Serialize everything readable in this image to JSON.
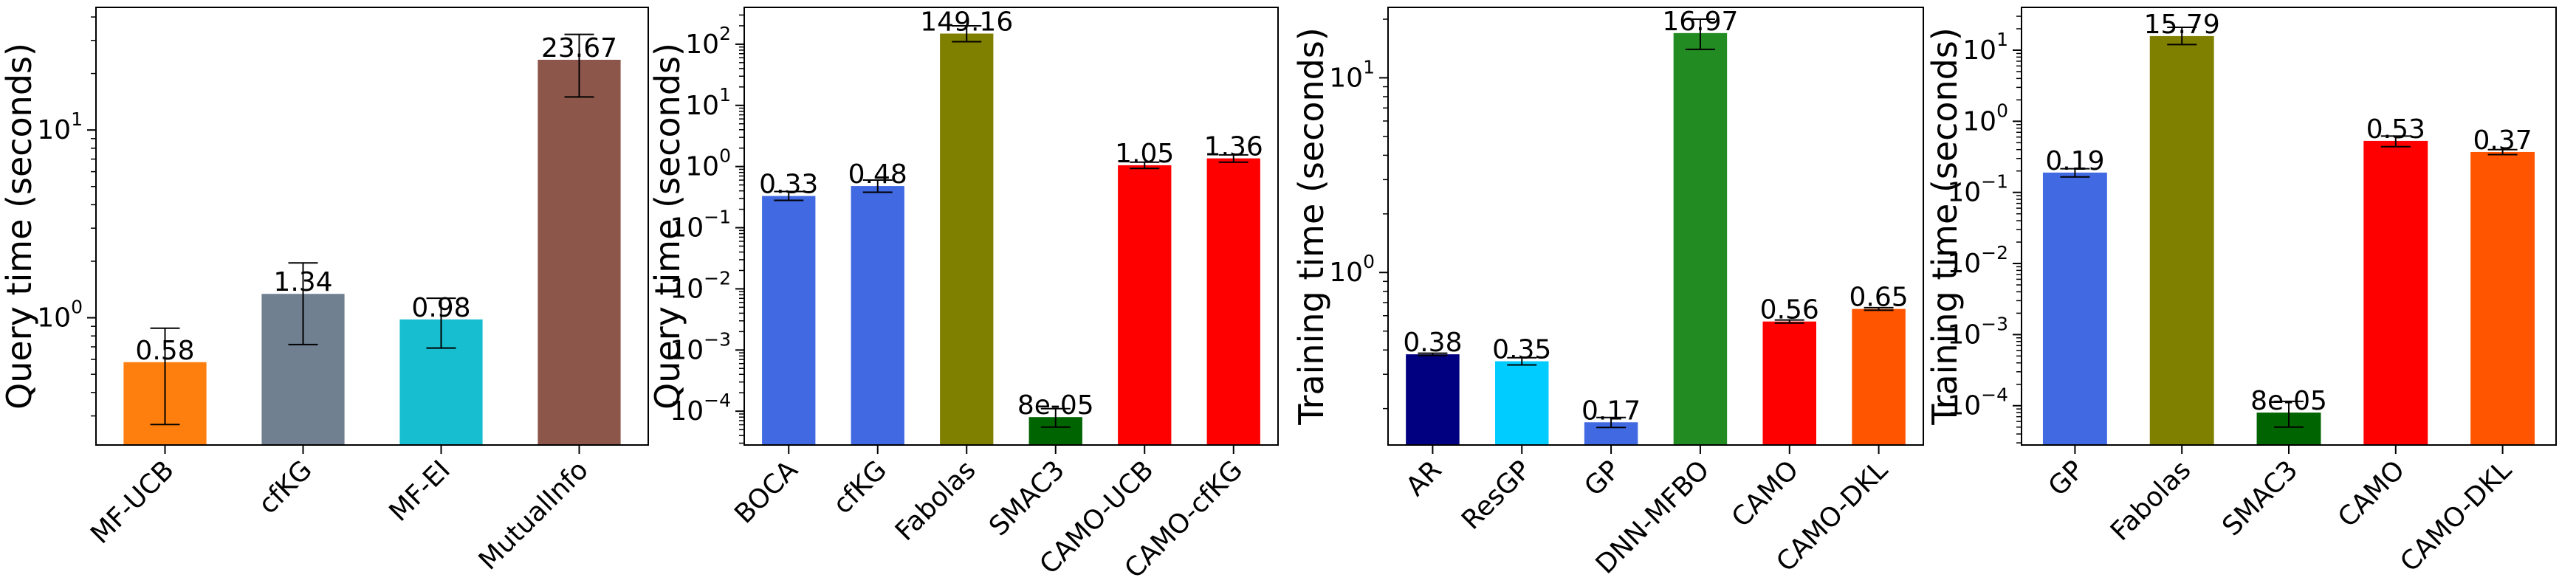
{
  "chart_data": [
    {
      "type": "bar",
      "ylabel": "Query time (seconds)",
      "yscale": "log",
      "ylim": [
        0.21,
        45
      ],
      "yticks": [
        {
          "value": 1,
          "mantissa": "10",
          "exp": "0"
        },
        {
          "value": 10,
          "mantissa": "10",
          "exp": "1"
        }
      ],
      "categories": [
        "MF-UCB",
        "cfKG",
        "MF-EI",
        "MutualInfo"
      ],
      "values": [
        0.58,
        1.34,
        0.98,
        23.67
      ],
      "value_labels": [
        "0.58",
        "1.34",
        "0.98",
        "23.67"
      ],
      "error_low": [
        0.27,
        0.72,
        0.69,
        15.0
      ],
      "error_high": [
        0.88,
        1.96,
        1.27,
        32.3
      ],
      "colors": [
        "#ff7f0e",
        "#708090",
        "#17becf",
        "#8c564b"
      ]
    },
    {
      "type": "bar",
      "ylabel": "Query time (seconds)",
      "yscale": "log",
      "ylim": [
        2.8e-05,
        400
      ],
      "yticks": [
        {
          "value": 0.0001,
          "mantissa": "10",
          "exp": "−4"
        },
        {
          "value": 0.001,
          "mantissa": "10",
          "exp": "−3"
        },
        {
          "value": 0.01,
          "mantissa": "10",
          "exp": "−2"
        },
        {
          "value": 0.1,
          "mantissa": "10",
          "exp": "−1"
        },
        {
          "value": 1,
          "mantissa": "10",
          "exp": "0"
        },
        {
          "value": 10,
          "mantissa": "10",
          "exp": "1"
        },
        {
          "value": 100,
          "mantissa": "10",
          "exp": "2"
        }
      ],
      "categories": [
        "BOCA",
        "cfKG",
        "Fabolas",
        "SMAC3",
        "CAMO-UCB",
        "CAMO-cfKG"
      ],
      "values": [
        0.33,
        0.48,
        149.16,
        8e-05,
        1.05,
        1.36
      ],
      "value_labels": [
        "0.33",
        "0.48",
        "149.16",
        "8e-05",
        "1.05",
        "1.36"
      ],
      "error_low": [
        0.28,
        0.38,
        110,
        5.5e-05,
        0.93,
        1.18
      ],
      "error_high": [
        0.39,
        0.6,
        200,
        0.00011,
        1.18,
        1.55
      ],
      "colors": [
        "#4169e1",
        "#4169e1",
        "#808000",
        "#006400",
        "#ff0000",
        "#ff0000"
      ]
    },
    {
      "type": "bar",
      "ylabel": "Training time (seconds)",
      "yscale": "log",
      "ylim": [
        0.13,
        23
      ],
      "yticks": [
        {
          "value": 1,
          "mantissa": "10",
          "exp": "0"
        },
        {
          "value": 10,
          "mantissa": "10",
          "exp": "1"
        }
      ],
      "categories": [
        "AR",
        "ResGP",
        "GP",
        "DNN-MFBO",
        "CAMO",
        "CAMO-DKL"
      ],
      "values": [
        0.38,
        0.35,
        0.17,
        16.97,
        0.56,
        0.65
      ],
      "value_labels": [
        "0.38",
        "0.35",
        "0.17",
        "16.97",
        "0.56",
        "0.65"
      ],
      "error_low": [
        0.375,
        0.335,
        0.16,
        14.0,
        0.55,
        0.64
      ],
      "error_high": [
        0.385,
        0.365,
        0.18,
        20.0,
        0.57,
        0.66
      ],
      "colors": [
        "#000080",
        "#00ccff",
        "#4169e1",
        "#228b22",
        "#ff0000",
        "#ff5500"
      ]
    },
    {
      "type": "bar",
      "ylabel": "Training time (seconds)",
      "yscale": "log",
      "ylim": [
        2.8e-05,
        40
      ],
      "yticks": [
        {
          "value": 0.0001,
          "mantissa": "10",
          "exp": "−4"
        },
        {
          "value": 0.001,
          "mantissa": "10",
          "exp": "−3"
        },
        {
          "value": 0.01,
          "mantissa": "10",
          "exp": "−2"
        },
        {
          "value": 0.1,
          "mantissa": "10",
          "exp": "−1"
        },
        {
          "value": 1,
          "mantissa": "10",
          "exp": "0"
        },
        {
          "value": 10,
          "mantissa": "10",
          "exp": "1"
        }
      ],
      "categories": [
        "GP",
        "Fabolas",
        "SMAC3",
        "CAMO",
        "CAMO-DKL"
      ],
      "values": [
        0.19,
        15.79,
        8e-05,
        0.53,
        0.37
      ],
      "value_labels": [
        "0.19",
        "15.79",
        "8e-05",
        "0.53",
        "0.37"
      ],
      "error_low": [
        0.165,
        12.0,
        5e-05,
        0.44,
        0.34
      ],
      "error_high": [
        0.215,
        21.0,
        0.000115,
        0.62,
        0.4
      ],
      "colors": [
        "#4169e1",
        "#808000",
        "#006400",
        "#ff0000",
        "#ff5500"
      ]
    }
  ]
}
